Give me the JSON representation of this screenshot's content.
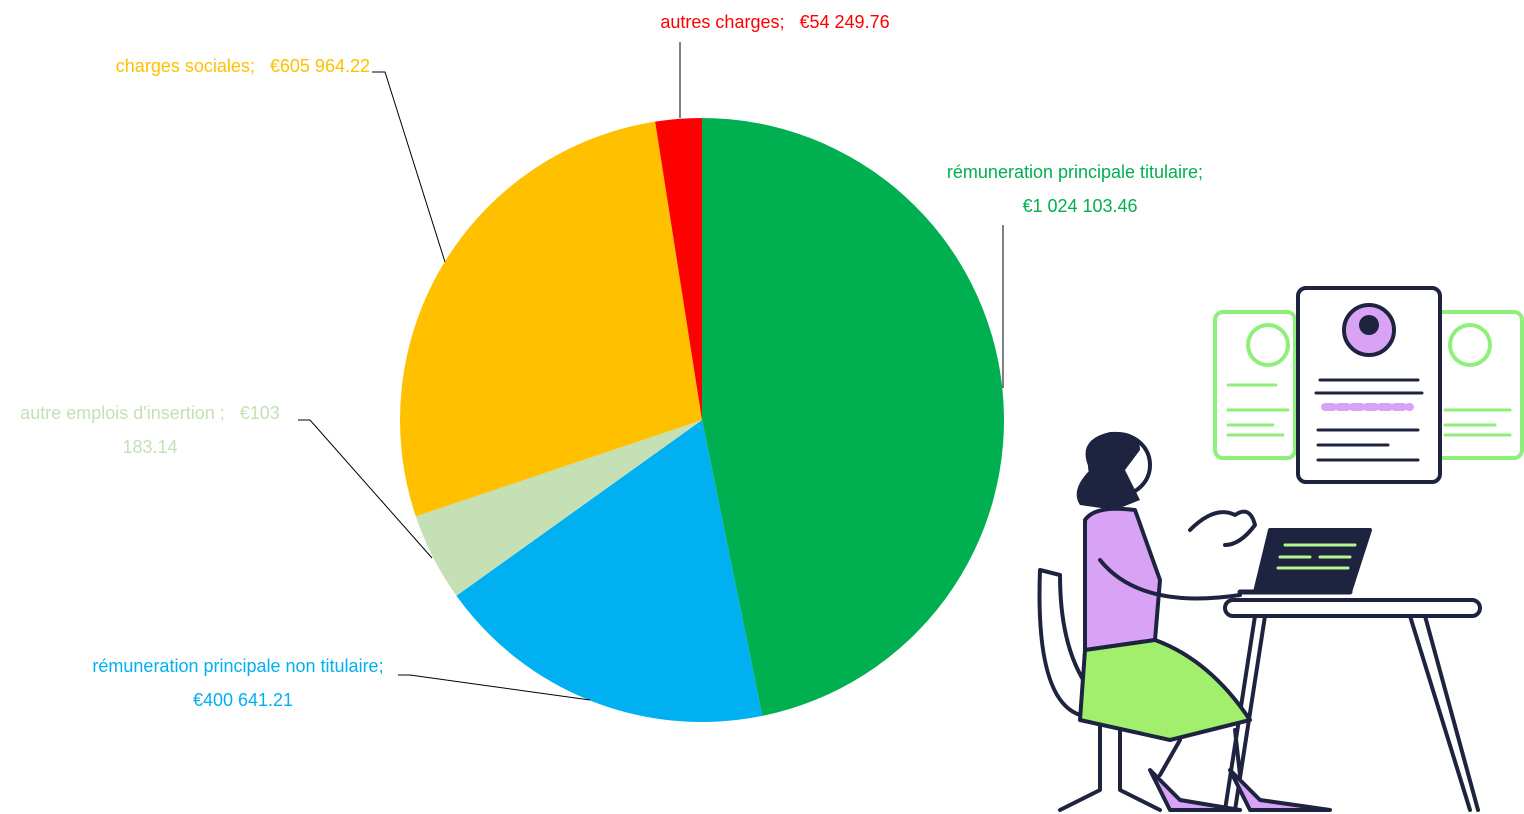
{
  "chart_data": {
    "type": "pie",
    "categories": [
      "rémuneration principale titulaire;",
      "rémuneration principale non titulaire;",
      "autre emplois d'insertion ;",
      "charges sociales;",
      "autres charges;"
    ],
    "values": [
      1024103.46,
      400641.21,
      103183.14,
      605964.22,
      54249.76
    ],
    "value_labels": [
      "€1 024 103.46",
      "€400 641.21",
      "€103 183.14",
      "€605 964.22",
      "€54 249.76"
    ],
    "colors": [
      "#00b050",
      "#00b0f0",
      "#c5e0b4",
      "#ffc000",
      "#ff0000"
    ]
  }
}
